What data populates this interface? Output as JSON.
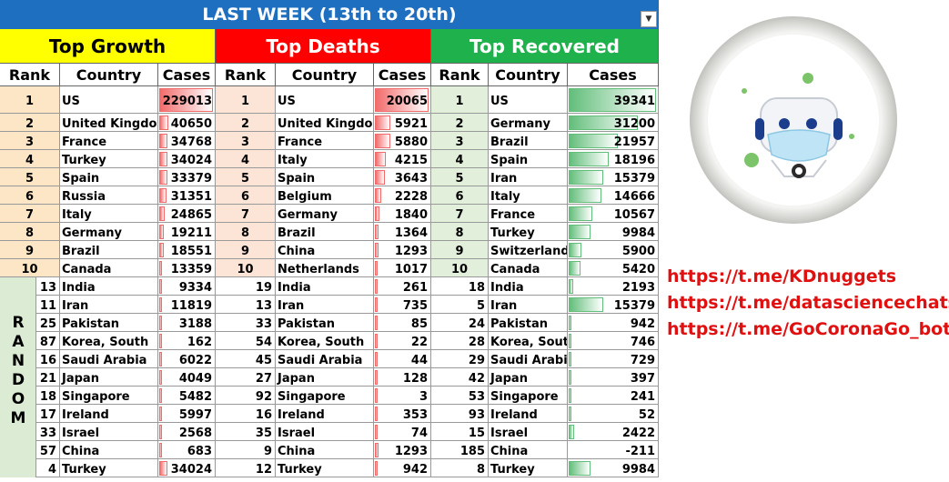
{
  "title": "LAST WEEK (13th to 20th)",
  "colors": {
    "title_bg": "#1f6fc1",
    "growth_header": "#ffff00",
    "deaths_header": "#ff0000",
    "recovered_header": "#1fb14c",
    "growth_rank_bg": "#fde6c6",
    "deaths_rank_bg": "#fce4d6",
    "recovered_rank_bg": "#e2efda",
    "random_bg": "#dcebd4",
    "growth_bar": "#f26b6b",
    "deaths_bar": "#f26b6b",
    "recovered_bar": "#63be7b",
    "link_color": "#e01010"
  },
  "sections": [
    {
      "key": "growth",
      "title": "Top Growth"
    },
    {
      "key": "deaths",
      "title": "Top Deaths"
    },
    {
      "key": "recovered",
      "title": "Top Recovered"
    }
  ],
  "column_headers": {
    "rank": "Rank",
    "country": "Country",
    "cases": "Cases"
  },
  "random_label": "RANDOM",
  "links": [
    "https://t.me/KDnuggets",
    "https://t.me/datasciencechats",
    "https://t.me/GoCoronaGo_bot"
  ],
  "chart_data": {
    "type": "table",
    "title": "LAST WEEK (13th to 20th)",
    "growth": {
      "top": [
        {
          "rank": "1",
          "country": "US",
          "cases": 229013
        },
        {
          "rank": "2",
          "country": "United Kingdom",
          "cases": 40650
        },
        {
          "rank": "3",
          "country": "France",
          "cases": 34768
        },
        {
          "rank": "4",
          "country": "Turkey",
          "cases": 34024
        },
        {
          "rank": "5",
          "country": "Spain",
          "cases": 33379
        },
        {
          "rank": "6",
          "country": "Russia",
          "cases": 31351
        },
        {
          "rank": "7",
          "country": "Italy",
          "cases": 24865
        },
        {
          "rank": "8",
          "country": "Germany",
          "cases": 19211
        },
        {
          "rank": "9",
          "country": "Brazil",
          "cases": 18551
        },
        {
          "rank": "10",
          "country": "Canada",
          "cases": 13359
        }
      ],
      "random": [
        {
          "rank": "13",
          "country": "India",
          "cases": 9334
        },
        {
          "rank": "11",
          "country": "Iran",
          "cases": 11819
        },
        {
          "rank": "25",
          "country": "Pakistan",
          "cases": 3188
        },
        {
          "rank": "87",
          "country": "Korea, South",
          "cases": 162
        },
        {
          "rank": "16",
          "country": "Saudi Arabia",
          "cases": 6022
        },
        {
          "rank": "21",
          "country": "Japan",
          "cases": 4049
        },
        {
          "rank": "18",
          "country": "Singapore",
          "cases": 5482
        },
        {
          "rank": "17",
          "country": "Ireland",
          "cases": 5997
        },
        {
          "rank": "33",
          "country": "Israel",
          "cases": 2568
        },
        {
          "rank": "57",
          "country": "China",
          "cases": 683
        },
        {
          "rank": "4",
          "country": "Turkey",
          "cases": 34024
        }
      ]
    },
    "deaths": {
      "top": [
        {
          "rank": "1",
          "country": "US",
          "cases": 20065
        },
        {
          "rank": "2",
          "country": "United Kingdom",
          "cases": 5921
        },
        {
          "rank": "3",
          "country": "France",
          "cases": 5880
        },
        {
          "rank": "4",
          "country": "Italy",
          "cases": 4215
        },
        {
          "rank": "5",
          "country": "Spain",
          "cases": 3643
        },
        {
          "rank": "6",
          "country": "Belgium",
          "cases": 2228
        },
        {
          "rank": "7",
          "country": "Germany",
          "cases": 1840
        },
        {
          "rank": "8",
          "country": "Brazil",
          "cases": 1364
        },
        {
          "rank": "9",
          "country": "China",
          "cases": 1293
        },
        {
          "rank": "10",
          "country": "Netherlands",
          "cases": 1017
        }
      ],
      "random": [
        {
          "rank": "19",
          "country": "India",
          "cases": 261
        },
        {
          "rank": "13",
          "country": "Iran",
          "cases": 735
        },
        {
          "rank": "33",
          "country": "Pakistan",
          "cases": 85
        },
        {
          "rank": "54",
          "country": "Korea, South",
          "cases": 22
        },
        {
          "rank": "45",
          "country": "Saudi Arabia",
          "cases": 44
        },
        {
          "rank": "27",
          "country": "Japan",
          "cases": 128
        },
        {
          "rank": "92",
          "country": "Singapore",
          "cases": 3
        },
        {
          "rank": "16",
          "country": "Ireland",
          "cases": 353
        },
        {
          "rank": "35",
          "country": "Israel",
          "cases": 74
        },
        {
          "rank": "9",
          "country": "China",
          "cases": 1293
        },
        {
          "rank": "12",
          "country": "Turkey",
          "cases": 942
        }
      ]
    },
    "recovered": {
      "top": [
        {
          "rank": "1",
          "country": "US",
          "cases": 39341
        },
        {
          "rank": "2",
          "country": "Germany",
          "cases": 31200
        },
        {
          "rank": "3",
          "country": "Brazil",
          "cases": 21957
        },
        {
          "rank": "4",
          "country": "Spain",
          "cases": 18196
        },
        {
          "rank": "5",
          "country": "Iran",
          "cases": 15379
        },
        {
          "rank": "6",
          "country": "Italy",
          "cases": 14666
        },
        {
          "rank": "7",
          "country": "France",
          "cases": 10567
        },
        {
          "rank": "8",
          "country": "Turkey",
          "cases": 9984
        },
        {
          "rank": "9",
          "country": "Switzerland",
          "cases": 5900
        },
        {
          "rank": "10",
          "country": "Canada",
          "cases": 5420
        }
      ],
      "random": [
        {
          "rank": "18",
          "country": "India",
          "cases": 2193
        },
        {
          "rank": "5",
          "country": "Iran",
          "cases": 15379
        },
        {
          "rank": "24",
          "country": "Pakistan",
          "cases": 942
        },
        {
          "rank": "28",
          "country": "Korea, South",
          "cases": 746
        },
        {
          "rank": "29",
          "country": "Saudi Arabia",
          "cases": 729
        },
        {
          "rank": "42",
          "country": "Japan",
          "cases": 397
        },
        {
          "rank": "53",
          "country": "Singapore",
          "cases": 241
        },
        {
          "rank": "93",
          "country": "Ireland",
          "cases": 52
        },
        {
          "rank": "15",
          "country": "Israel",
          "cases": 2422
        },
        {
          "rank": "185",
          "country": "China",
          "cases": -211
        },
        {
          "rank": "8",
          "country": "Turkey",
          "cases": 9984
        }
      ]
    }
  }
}
